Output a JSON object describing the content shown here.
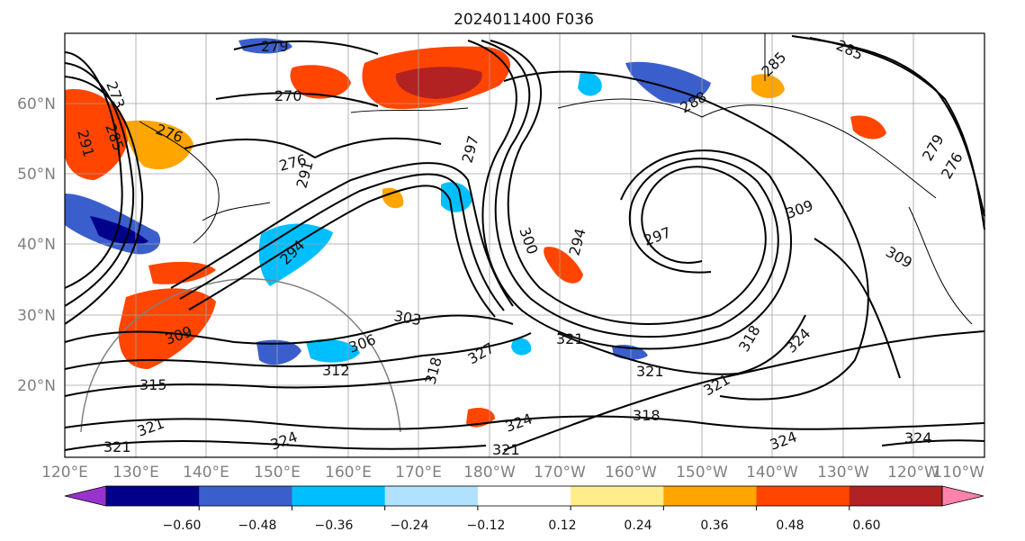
{
  "map": {
    "title": "2024011400 F036",
    "lat_labels": [
      "60°N",
      "50°N",
      "40°N",
      "30°N",
      "20°N"
    ],
    "lon_labels": [
      "120°E",
      "130°E",
      "140°E",
      "150°E",
      "160°E",
      "170°E",
      "180°W",
      "170°W",
      "160°W",
      "150°W",
      "140°W",
      "130°W",
      "120°W",
      "110°W"
    ],
    "contour_labels": [
      "279",
      "270",
      "273",
      "285",
      "291",
      "276",
      "276",
      "291",
      "294",
      "297",
      "300",
      "303",
      "306",
      "309",
      "312",
      "315",
      "318",
      "321",
      "324",
      "285",
      "285",
      "288",
      "279",
      "276",
      "309",
      "309",
      "294",
      "297",
      "321",
      "318",
      "321",
      "324",
      "318",
      "321",
      "324",
      "321",
      "324",
      "324",
      "321",
      "327"
    ],
    "colors": {
      "land": "#ffffff",
      "grid": "#a0a0a0",
      "contour": "#000000"
    }
  },
  "colorbar": {
    "tick_labels": [
      "−0.60",
      "−0.48",
      "−0.36",
      "−0.24",
      "−0.12",
      "0.12",
      "0.24",
      "0.36",
      "0.48",
      "0.60"
    ],
    "colors": [
      "#9a32cd",
      "#00008b",
      "#3a5fcd",
      "#00bfff",
      "#b0e2ff",
      "#ffffff",
      "#ffec8b",
      "#ffa500",
      "#ff4500",
      "#b22222",
      "#ff82ab"
    ]
  }
}
